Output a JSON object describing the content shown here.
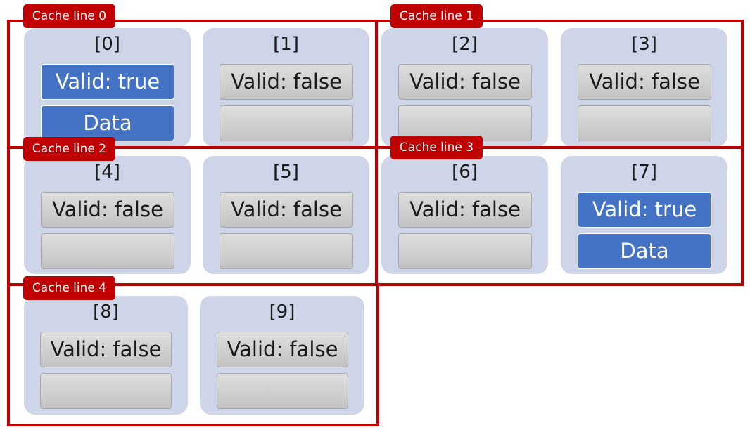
{
  "cache_lines": [
    {
      "label": "Cache line 0"
    },
    {
      "label": "Cache line 1"
    },
    {
      "label": "Cache line 2"
    },
    {
      "label": "Cache line 3"
    },
    {
      "label": "Cache line 4"
    }
  ],
  "slots": [
    {
      "index": "[0]",
      "valid": "Valid: true",
      "data": "Data",
      "active": true
    },
    {
      "index": "[1]",
      "valid": "Valid: false",
      "data": "",
      "active": false
    },
    {
      "index": "[2]",
      "valid": "Valid: false",
      "data": "",
      "active": false
    },
    {
      "index": "[3]",
      "valid": "Valid: false",
      "data": "",
      "active": false
    },
    {
      "index": "[4]",
      "valid": "Valid: false",
      "data": "",
      "active": false
    },
    {
      "index": "[5]",
      "valid": "Valid: false",
      "data": "",
      "active": false
    },
    {
      "index": "[6]",
      "valid": "Valid: false",
      "data": "",
      "active": false
    },
    {
      "index": "[7]",
      "valid": "Valid: true",
      "data": "Data",
      "active": true
    },
    {
      "index": "[8]",
      "valid": "Valid: false",
      "data": "",
      "active": false
    },
    {
      "index": "[9]",
      "valid": "Valid: false",
      "data": "",
      "active": false
    }
  ],
  "colors": {
    "cache_line": "#c00000",
    "slot_background": "#cfd5e8",
    "valid_true": "#4472c4",
    "valid_false": "#c8c8c8"
  }
}
